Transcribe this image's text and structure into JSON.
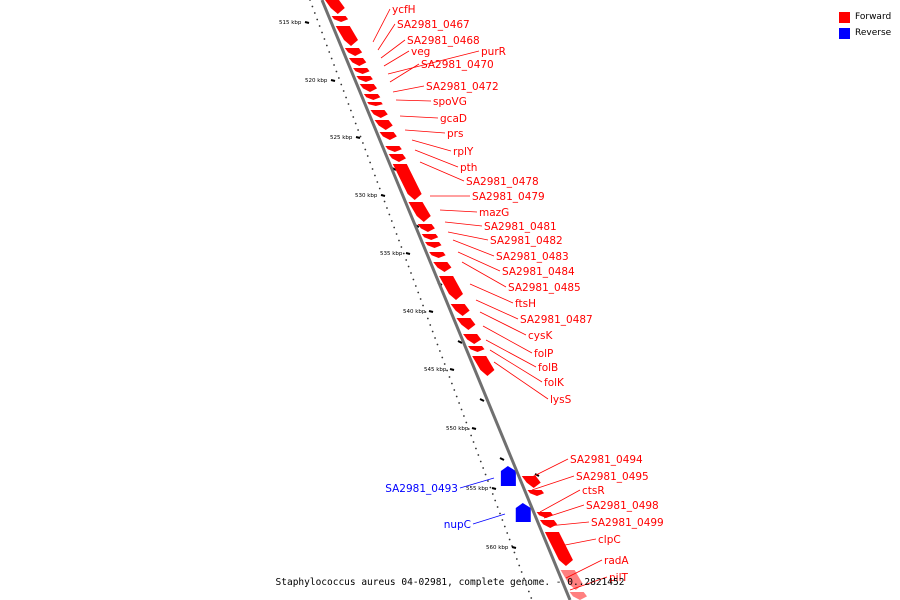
{
  "legend": {
    "forward_label": "Forward",
    "reverse_label": "Reverse",
    "forward_color": "#ff0000",
    "reverse_color": "#0000ff"
  },
  "caption": "Staphylococcus aureus 04-02981, complete genome. - 0..2821452",
  "scale": {
    "ticks": [
      "515 kbp",
      "520 kbp",
      "525 kbp",
      "530 kbp",
      "535 kbp",
      "540 kbp",
      "545 kbp",
      "550 kbp",
      "555 kbp",
      "560 kbp"
    ]
  },
  "forward_genes": [
    "ycfH",
    "SA2981_0467",
    "SA2981_0468",
    "veg",
    "purR",
    "SA2981_0470",
    "SA2981_0472",
    "spoVG",
    "gcaD",
    "prs",
    "rplY",
    "pth",
    "SA2981_0478",
    "SA2981_0479",
    "mazG",
    "SA2981_0481",
    "SA2981_0482",
    "SA2981_0483",
    "SA2981_0484",
    "SA2981_0485",
    "ftsH",
    "SA2981_0487",
    "cysK",
    "folP",
    "folB",
    "folK",
    "lysS",
    "SA2981_0494",
    "SA2981_0495",
    "ctsR",
    "SA2981_0498",
    "SA2981_0499",
    "clpC",
    "radA",
    "pilT"
  ],
  "reverse_genes": [
    "SA2981_0493",
    "nupC"
  ]
}
